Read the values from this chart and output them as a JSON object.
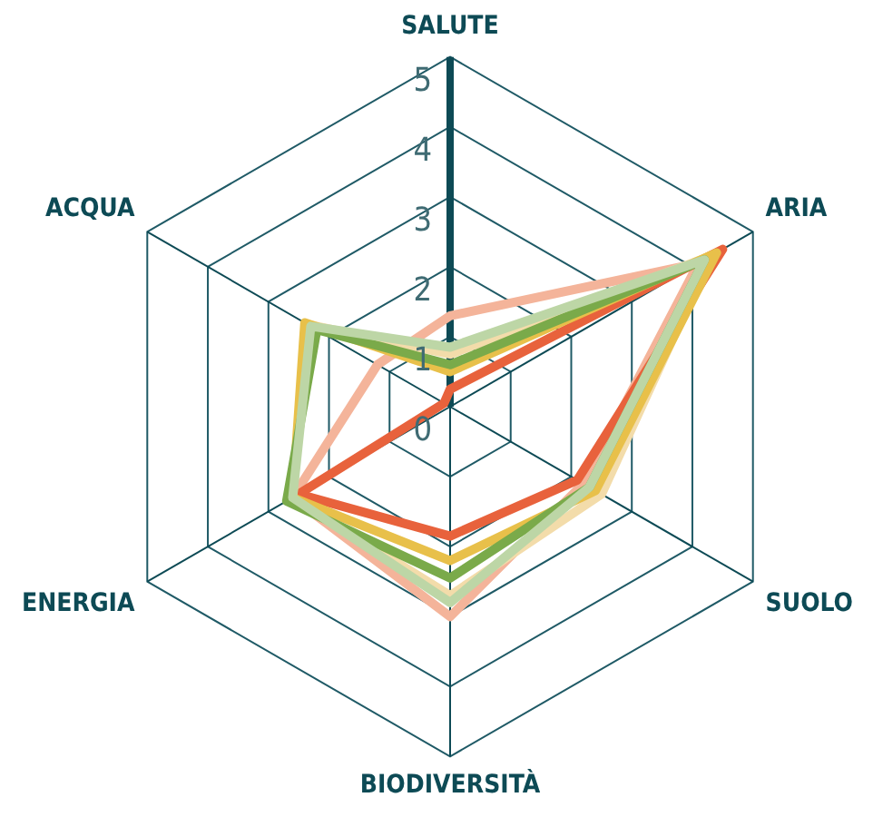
{
  "chart_data": {
    "type": "radar",
    "categories": [
      "SALUTE",
      "ARIA",
      "SUOLO",
      "BIODIVERSITÀ",
      "ENERGIA",
      "ACQUA"
    ],
    "ylim": [
      0,
      5
    ],
    "yticks": [
      0,
      1,
      2,
      3,
      4,
      5
    ],
    "grid": true,
    "legend": false,
    "marker": "none",
    "series": [
      {
        "color": "#bdd6a6",
        "values": [
          0.85,
          4.2,
          2.3,
          2.8,
          2.6,
          2.3
        ]
      },
      {
        "color": "#7aaa4a",
        "values": [
          0.6,
          4.2,
          2.3,
          2.45,
          2.7,
          2.2
        ]
      },
      {
        "color": "#e8c04a",
        "values": [
          0.5,
          4.4,
          2.4,
          2.2,
          2.6,
          2.4
        ]
      },
      {
        "color": "#f3dcaa",
        "values": [
          0.75,
          4.3,
          2.5,
          2.7,
          2.6,
          2.35
        ]
      },
      {
        "color": "#e8623c",
        "values": [
          0.25,
          4.5,
          2.1,
          1.85,
          2.5,
          0.1
        ]
      },
      {
        "color": "#f4b49a",
        "values": [
          1.3,
          4.1,
          2.2,
          3.0,
          2.6,
          1.2
        ]
      }
    ]
  }
}
